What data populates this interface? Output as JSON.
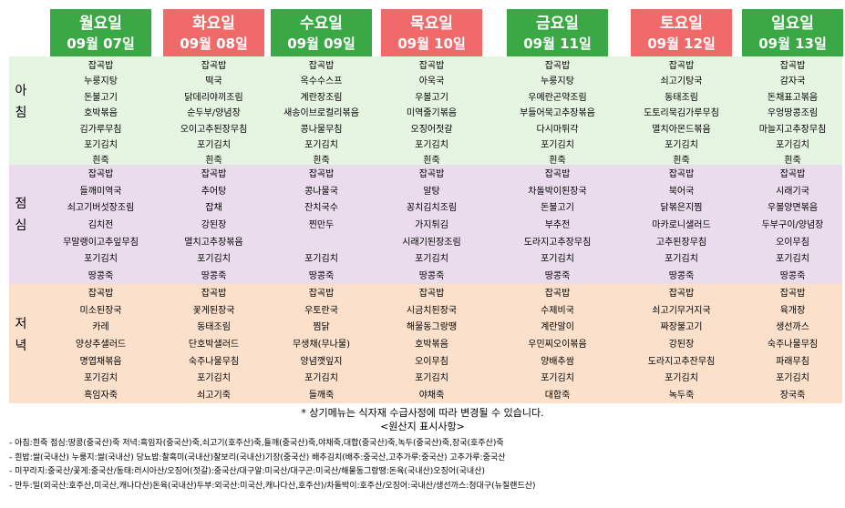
{
  "days": [
    {
      "name": "월요일",
      "date": "09월 07일",
      "color": "green"
    },
    {
      "name": "화요일",
      "date": "09월 08일",
      "color": "red"
    },
    {
      "name": "수요일",
      "date": "09월 09일",
      "color": "green"
    },
    {
      "name": "목요일",
      "date": "09월 10일",
      "color": "red"
    },
    {
      "name": "금요일",
      "date": "09월 11일",
      "color": "green"
    },
    {
      "name": "토요일",
      "date": "09월 12일",
      "color": "red"
    },
    {
      "name": "일요일",
      "date": "09월 13일",
      "color": "green"
    }
  ],
  "meals": {
    "morning": {
      "label": [
        "아",
        "침"
      ],
      "menus": [
        [
          "잡곡밥",
          "누룽지탕",
          "돈불고기",
          "호박볶음",
          "김가루무침",
          "포기김치",
          "흰죽"
        ],
        [
          "잡곡밥",
          "떡국",
          "닭데리야끼조림",
          "순두부/양념장",
          "오이고추된장무침",
          "포기김치",
          "흰죽"
        ],
        [
          "잡곡밥",
          "옥수수스프",
          "계란장조림",
          "새송이브로컬리볶음",
          "콩나물무침",
          "포기김치",
          "흰죽"
        ],
        [
          "잡곡밥",
          "아욱국",
          "우볼고기",
          "미역줄기볶음",
          "오징어젓갈",
          "포기김치",
          "흰죽"
        ],
        [
          "잡곡밥",
          "누룽지탕",
          "우메란곤약조림",
          "부들어묵고추장볶음",
          "다시마튀각",
          "포기김치",
          "흰죽"
        ],
        [
          "잡곡밥",
          "쇠고기탕국",
          "동태조림",
          "도토리묵김가루무침",
          "멸치아몬드볶음",
          "포기김치",
          "흰죽"
        ],
        [
          "잡곡밥",
          "감자국",
          "돈채표고볶음",
          "우엉땅콩조림",
          "마늘지고추장무침",
          "포기김치",
          "흰죽"
        ]
      ]
    },
    "lunch": {
      "label": [
        "점",
        "심"
      ],
      "menus": [
        [
          "잡곡밥",
          "들깨미역국",
          "쇠고기버섯장조림",
          "김치전",
          "무말랭이고추잎무침",
          "포기김치",
          "땅콩죽"
        ],
        [
          "잡곡밥",
          "추어탕",
          "잡채",
          "강된장",
          "멸치고추장볶음",
          "포기김치",
          "땅콩죽"
        ],
        [
          "잡곡밥",
          "콩나물국",
          "잔치국수",
          "찐만두",
          "",
          "포기김치",
          "땅콩죽"
        ],
        [
          "잡곡밥",
          "알탕",
          "꽁치김치조림",
          "가지튀김",
          "시래기된장조림",
          "포기김치",
          "땅콩죽"
        ],
        [
          "잡곡밥",
          "차돌박이된장국",
          "돈불고기",
          "부추전",
          "도라지고추장무침",
          "포기김치",
          "땅콩죽"
        ],
        [
          "잡곡밥",
          "북어국",
          "닭볶은지찜",
          "마카로니샐러드",
          "고추된장무침",
          "포기김치",
          "땅콩죽"
        ],
        [
          "잡곡밥",
          "시래기국",
          "우볼양면볶음",
          "두부구이/양념장",
          "오이무침",
          "포기김치",
          "땅콩죽"
        ]
      ]
    },
    "dinner": {
      "label": [
        "저",
        "녁"
      ],
      "menus": [
        [
          "잡곡밥",
          "미소된장국",
          "카레",
          "양상추샐러드",
          "명엽채볶음",
          "포기김치",
          "흑임자죽"
        ],
        [
          "잡곡밥",
          "꽃게된장국",
          "동태조림",
          "단호박샐러드",
          "숙주나물무침",
          "포기김치",
          "쇠고기죽"
        ],
        [
          "잡곡밥",
          "우토란국",
          "찜닭",
          "무생채(무나물)",
          "양념깻잎지",
          "포기김치",
          "들깨죽"
        ],
        [
          "잡곡밥",
          "시금치된장국",
          "해물동그랑땡",
          "호박볶음",
          "오이무침",
          "포기김치",
          "야채죽"
        ],
        [
          "잡곡밥",
          "수제비국",
          "계란말이",
          "우민찌오이볶음",
          "양배추쌈",
          "포기김치",
          "대합죽"
        ],
        [
          "잡곡밥",
          "쇠고기무거지국",
          "짜장불고기",
          "강된장",
          "도라지고추잔무침",
          "포기김치",
          "녹두죽"
        ],
        [
          "잡곡밥",
          "육개장",
          "생선까스",
          "숙주나물무침",
          "파래무침",
          "포기김치",
          "장국죽"
        ]
      ]
    }
  },
  "notice": "* 상기메뉴는 식자재 수급사정에 따라 변경될 수 있습니다.",
  "origin_title": "<원산지 표시사항>",
  "origin_lines": [
    "- 아침:흰죽  점심:땅콩(중국산)죽  저녁:흑임자(중국산)죽,쇠고기(호주산)죽,들깨(중국산)죽,야채죽,대합(중국산)죽,녹두(중국산)죽,장국(호주산)죽",
    "- 흰밥:쌀(국내산)  누룽지:쌀(국내산)  당뇨밥:찰흑미(국내산)찰보리(국내산)기장(중국산)  배추김치(배추:중국산,고추가루:중국산)  고추가루:중국산",
    "- 미꾸라지:중국산/꽃게:중국산/동태:러시아산/오징어(젓갈):중국산/대구알:미국산/대구곤:미국산/해물동그랑땡:돈육(국내산)오징어(국내산)",
    "- 만두:밀(외국산:호주산,미국산,캐나다산)돈육(국내산)두부:외국산:미국산,캐나다산,호주산)/차돌박이:호주산/오징어:국내산/생선까스:청대구(뉴질랜드산)"
  ],
  "colors": {
    "green": "#3aa845",
    "red": "#f06a6a",
    "morning_bg": "#e6f4e2",
    "lunch_bg": "#eadbed",
    "dinner_bg": "#fbe0cb"
  }
}
